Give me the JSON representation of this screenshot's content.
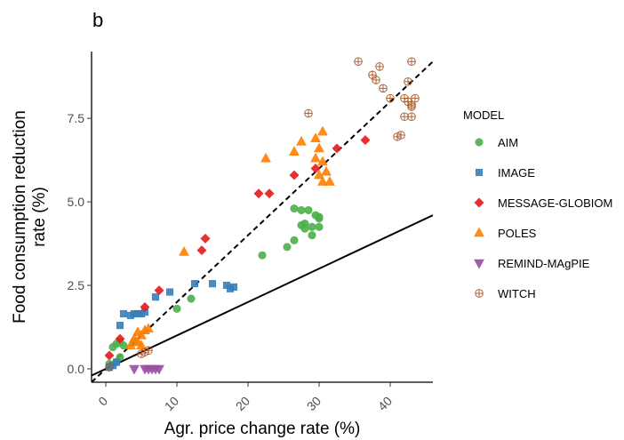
{
  "panel_label": "b",
  "colors": {
    "AIM": "#4daf4a",
    "IMAGE": "#377eb8",
    "MESSAGE-GLOBIOM": "#e41a1c",
    "POLES": "#ff7f00",
    "REMIND-MAgPIE": "#984ea3",
    "WITCH": "#a65628"
  },
  "chart_data": {
    "type": "scatter",
    "xlabel": "Agr. price change rate (%)",
    "ylabel_line1": "Food consumption reduction",
    "ylabel_line2": "rate (%)",
    "xlim": [
      -2,
      46
    ],
    "ylim": [
      -0.4,
      9.5
    ],
    "x_ticks": [
      0,
      10,
      20,
      30,
      40
    ],
    "x_tick_labels": [
      "0",
      "10",
      "20",
      "30",
      "40"
    ],
    "y_ticks": [
      0.0,
      2.5,
      5.0,
      7.5
    ],
    "y_tick_labels": [
      "0.0",
      "2.5",
      "5.0",
      "7.5"
    ],
    "grid": false,
    "legend_title": "MODEL",
    "legend_position": "right",
    "reference_lines": [
      {
        "style": "dashed",
        "slope": 0.2,
        "intercept": 0
      },
      {
        "style": "solid",
        "slope": 0.1,
        "intercept": 0
      }
    ],
    "series": [
      {
        "name": "AIM",
        "marker": "circle",
        "points": [
          [
            0.5,
            0.15
          ],
          [
            1.0,
            0.65
          ],
          [
            1.5,
            0.75
          ],
          [
            2.0,
            0.8
          ],
          [
            2.5,
            0.7
          ],
          [
            1.5,
            0.2
          ],
          [
            2.0,
            0.35
          ],
          [
            4.0,
            0.8
          ],
          [
            10.0,
            1.8
          ],
          [
            12.0,
            2.1
          ],
          [
            22.0,
            3.4
          ],
          [
            25.5,
            3.65
          ],
          [
            26.5,
            3.85
          ],
          [
            26.5,
            4.8
          ],
          [
            27.5,
            4.75
          ],
          [
            27.5,
            4.3
          ],
          [
            28.0,
            4.2
          ],
          [
            28.0,
            4.35
          ],
          [
            28.5,
            4.75
          ],
          [
            29.0,
            4.0
          ],
          [
            29.0,
            4.25
          ],
          [
            29.5,
            4.6
          ],
          [
            30.0,
            4.5
          ],
          [
            30.0,
            4.55
          ],
          [
            30.0,
            4.25
          ]
        ]
      },
      {
        "name": "IMAGE",
        "marker": "square",
        "points": [
          [
            0.5,
            0.05
          ],
          [
            1.0,
            0.1
          ],
          [
            1.5,
            0.2
          ],
          [
            2.0,
            1.3
          ],
          [
            2.5,
            1.65
          ],
          [
            3.5,
            1.6
          ],
          [
            4.0,
            1.65
          ],
          [
            4.5,
            1.65
          ],
          [
            5.0,
            1.65
          ],
          [
            5.5,
            1.7
          ],
          [
            7.0,
            2.15
          ],
          [
            9.0,
            2.3
          ],
          [
            12.5,
            2.55
          ],
          [
            15.0,
            2.55
          ],
          [
            17.0,
            2.5
          ],
          [
            17.5,
            2.4
          ],
          [
            18.0,
            2.45
          ]
        ]
      },
      {
        "name": "MESSAGE-GLOBIOM",
        "marker": "diamond",
        "points": [
          [
            0.5,
            0.4
          ],
          [
            2.0,
            0.9
          ],
          [
            5.5,
            1.85
          ],
          [
            7.5,
            2.35
          ],
          [
            13.5,
            3.55
          ],
          [
            14.0,
            3.9
          ],
          [
            21.5,
            5.25
          ],
          [
            23.0,
            5.25
          ],
          [
            26.5,
            5.8
          ],
          [
            29.5,
            6.0
          ],
          [
            32.5,
            6.6
          ],
          [
            36.5,
            6.85
          ]
        ]
      },
      {
        "name": "POLES",
        "marker": "triangle-up",
        "points": [
          [
            3.5,
            0.7
          ],
          [
            4.0,
            0.9
          ],
          [
            4.5,
            1.1
          ],
          [
            5.0,
            1.0
          ],
          [
            5.5,
            1.15
          ],
          [
            6.0,
            1.2
          ],
          [
            4.5,
            0.8
          ],
          [
            5.0,
            0.7
          ],
          [
            11.0,
            3.5
          ],
          [
            22.5,
            6.3
          ],
          [
            26.5,
            6.5
          ],
          [
            27.5,
            6.8
          ],
          [
            29.5,
            6.3
          ],
          [
            29.5,
            6.9
          ],
          [
            30.0,
            6.6
          ],
          [
            30.0,
            5.8
          ],
          [
            30.5,
            6.2
          ],
          [
            30.5,
            7.1
          ],
          [
            30.5,
            5.6
          ],
          [
            31.0,
            5.9
          ],
          [
            31.5,
            5.6
          ]
        ]
      },
      {
        "name": "REMIND-MAgPIE",
        "marker": "triangle-down",
        "points": [
          [
            4.0,
            0.0
          ],
          [
            5.5,
            0.0
          ],
          [
            6.0,
            0.0
          ],
          [
            6.5,
            0.0
          ],
          [
            7.0,
            0.0
          ],
          [
            7.5,
            0.0
          ]
        ]
      },
      {
        "name": "WITCH",
        "marker": "circle-plus",
        "points": [
          [
            0.5,
            0.05
          ],
          [
            5.0,
            0.45
          ],
          [
            5.5,
            0.5
          ],
          [
            6.0,
            0.55
          ],
          [
            28.5,
            7.65
          ],
          [
            35.5,
            9.2
          ],
          [
            37.5,
            8.8
          ],
          [
            38.0,
            8.65
          ],
          [
            38.5,
            9.05
          ],
          [
            39.0,
            8.4
          ],
          [
            40.0,
            8.1
          ],
          [
            41.0,
            6.95
          ],
          [
            41.5,
            7.0
          ],
          [
            42.0,
            8.1
          ],
          [
            42.0,
            7.55
          ],
          [
            42.5,
            8.0
          ],
          [
            42.5,
            8.6
          ],
          [
            43.0,
            9.2
          ],
          [
            43.0,
            7.85
          ],
          [
            43.0,
            7.55
          ],
          [
            43.5,
            8.1
          ],
          [
            43.0,
            7.9
          ]
        ]
      }
    ]
  }
}
